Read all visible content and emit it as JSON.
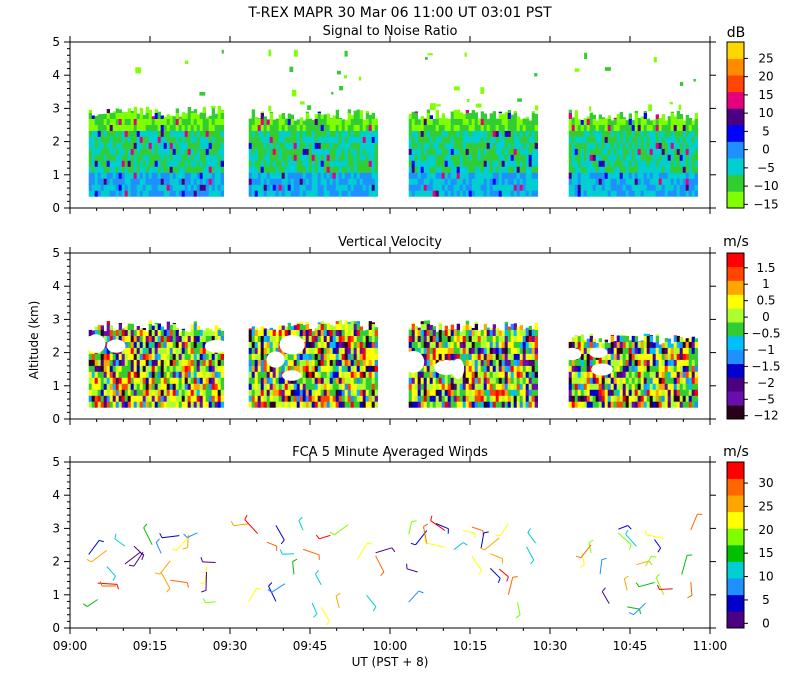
{
  "header": {
    "title": "T-REX   MAPR 30 Mar 06   11:00 UT   03:01   PST"
  },
  "colors": {
    "snr_palette": [
      "#7fff00",
      "#32cd32",
      "#00ced1",
      "#1e90ff",
      "#0000ff",
      "#4b0082",
      "#e6007e",
      "#ff4500",
      "#ff8c00",
      "#ffd700"
    ],
    "vel_palette": [
      "#2a001a",
      "#6a0dad",
      "#4b0082",
      "#0000cd",
      "#1e90ff",
      "#00bfff",
      "#32cd32",
      "#adff2f",
      "#ffff00",
      "#ffa500",
      "#ff4500",
      "#ff0000"
    ],
    "wind_palette": [
      "#4b0082",
      "#0000cd",
      "#1e90ff",
      "#00ced1",
      "#00c000",
      "#7fff00",
      "#ffff00",
      "#ffa500",
      "#ff6600",
      "#ff0000"
    ]
  },
  "x_axis": {
    "label": "UT  (PST + 8)",
    "ticks": [
      "09:00",
      "09:15",
      "09:30",
      "09:45",
      "10:00",
      "10:15",
      "10:30",
      "10:45",
      "11:00"
    ],
    "range_minutes": [
      0,
      120
    ]
  },
  "y_axis": {
    "label": "Altitude  (km)",
    "ticks": [
      "0",
      "1",
      "2",
      "3",
      "4",
      "5"
    ],
    "range": [
      0,
      5
    ]
  },
  "chart_data": [
    {
      "type": "heatmap",
      "title": "Signal to Noise Ratio",
      "unit": "dB",
      "colorbar_ticks": [
        "25",
        "20",
        "15",
        "10",
        "5",
        "0",
        "−5",
        "−10",
        "−15"
      ],
      "xlim": [
        0,
        120
      ],
      "ylim": [
        0,
        5
      ],
      "data_segments_minutes": [
        [
          3.5,
          28.5
        ],
        [
          33.5,
          57.5
        ],
        [
          63.5,
          87.5
        ],
        [
          93.5,
          117.5
        ]
      ],
      "segment_tops_km": [
        2.9,
        2.8,
        2.8,
        2.8
      ],
      "min_altitude_km": 0.35
    },
    {
      "type": "heatmap",
      "title": "Vertical Velocity",
      "unit": "m/s",
      "colorbar_ticks": [
        "1.5",
        "1",
        "0.5",
        "0",
        "−0.5",
        "−1",
        "−1.5",
        "−2",
        "−5",
        "−12"
      ],
      "xlim": [
        0,
        120
      ],
      "ylim": [
        0,
        5
      ],
      "data_segments_minutes": [
        [
          3.5,
          28.5
        ],
        [
          33.5,
          57.5
        ],
        [
          63.5,
          87.5
        ],
        [
          93.5,
          117.5
        ]
      ],
      "segment_tops_km": [
        2.8,
        2.8,
        2.8,
        2.4
      ],
      "min_altitude_km": 0.35
    },
    {
      "type": "scatter",
      "title": "FCA 5 Minute Averaged Winds",
      "unit": "m/s",
      "colorbar_ticks": [
        "30",
        "25",
        "20",
        "15",
        "10",
        "5",
        "0"
      ],
      "xlim": [
        0,
        120
      ],
      "ylim": [
        0,
        5
      ],
      "note": "Wind barbs plotted at 5-minute intervals",
      "wind_groups_minutes": [
        [
          3.5,
          28.5
        ],
        [
          33.5,
          57.5
        ],
        [
          63.5,
          87.5
        ],
        [
          96,
          117.5
        ]
      ]
    }
  ]
}
